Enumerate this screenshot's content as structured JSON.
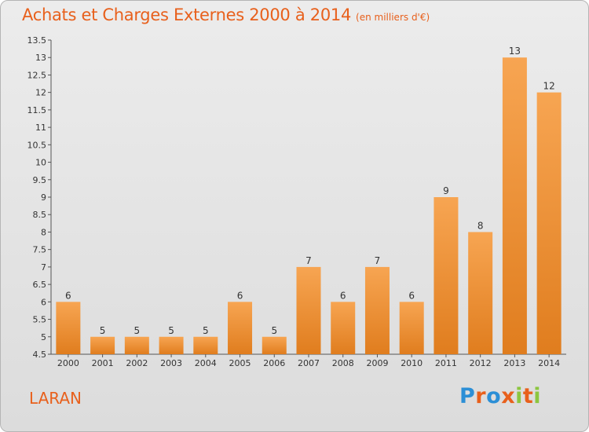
{
  "title": "Achats et Charges Externes 2000 à 2014",
  "subtitle": "(en milliers d'€)",
  "place": "LARAN",
  "brand": {
    "letters": [
      "P",
      "r",
      "o",
      "x",
      "i",
      "t",
      "i"
    ],
    "colors": [
      "#2c8fd6",
      "#e8601c",
      "#2c8fd6",
      "#e8601c",
      "#8cc63f",
      "#e8601c",
      "#8cc63f"
    ]
  },
  "colors": {
    "title": "#e8601c",
    "bar_top": "#f7a552",
    "bar_bottom": "#e07d1e"
  },
  "chart_data": {
    "type": "bar",
    "categories": [
      "2000",
      "2001",
      "2002",
      "2003",
      "2004",
      "2005",
      "2006",
      "2007",
      "2008",
      "2009",
      "2010",
      "2011",
      "2012",
      "2013",
      "2014"
    ],
    "values": [
      6,
      5,
      5,
      5,
      5,
      6,
      5,
      7,
      6,
      7,
      6,
      9,
      8,
      13,
      12
    ],
    "ylim": [
      4.5,
      13.5
    ],
    "yticks": [
      "4.5",
      "5",
      "5.5",
      "6",
      "6.5",
      "7",
      "7.5",
      "8",
      "8.5",
      "9",
      "9.5",
      "10",
      "10.5",
      "11",
      "11.5",
      "12",
      "12.5",
      "13",
      "13.5"
    ],
    "xlabel": "",
    "ylabel": "",
    "grid": false
  }
}
